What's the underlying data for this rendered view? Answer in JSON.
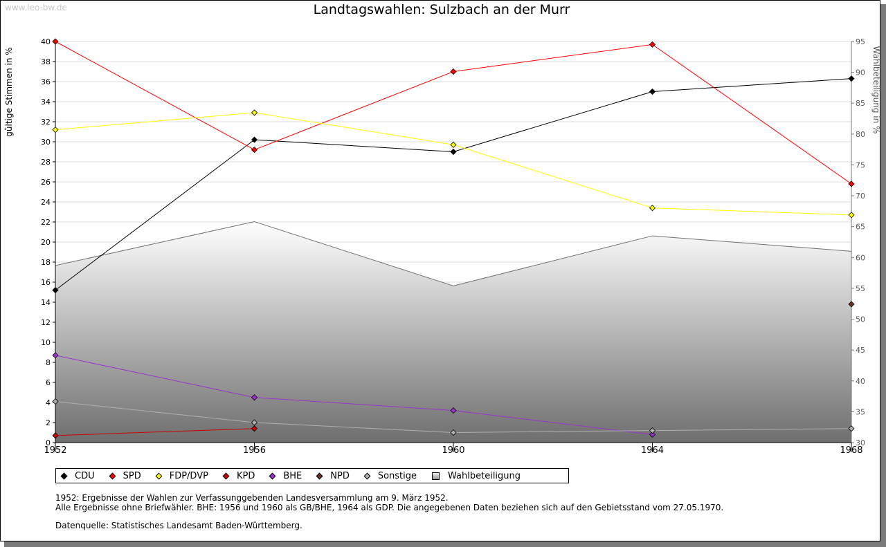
{
  "watermark": "www.leo-bw.de",
  "title": "Landtagswahlen: Sulzbach an der Murr",
  "y_left_label": "gültige Stimmen in %",
  "y_right_label": "Wahlbeteiligung in %",
  "notes": {
    "line1": "1952: Ergebnisse der Wahlen zur Verfassunggebenden Landesversammlung am 9. März 1952.",
    "line2": "Alle Ergebnisse ohne Briefwähler. BHE: 1956 und 1960 als GB/BHE, 1964 als GDP. Die angegebenen Daten beziehen sich auf den Gebietsstand vom 27.05.1970.",
    "source": "Datenquelle: Statistisches Landesamt Baden-Württemberg."
  },
  "chart_data": {
    "type": "line",
    "title": "Landtagswahlen: Sulzbach an der Murr",
    "x": [
      "1952",
      "1956",
      "1960",
      "1964",
      "1968"
    ],
    "ylabel": "gültige Stimmen in %",
    "ylim": [
      0,
      40
    ],
    "yticks": [
      0,
      2,
      4,
      6,
      8,
      10,
      12,
      14,
      16,
      18,
      20,
      22,
      24,
      26,
      28,
      30,
      32,
      34,
      36,
      38,
      40
    ],
    "y2label": "Wahlbeteiligung in %",
    "y2lim": [
      30,
      95
    ],
    "y2ticks": [
      30,
      35,
      40,
      45,
      50,
      55,
      60,
      65,
      70,
      75,
      80,
      85,
      90,
      95
    ],
    "grid": true,
    "series": [
      {
        "name": "CDU",
        "color": "#000000",
        "axis": "left",
        "values": [
          15.2,
          30.2,
          29.0,
          35.0,
          36.3
        ]
      },
      {
        "name": "SPD",
        "color": "#ff0000",
        "axis": "left",
        "values": [
          40.0,
          29.2,
          37.0,
          39.7,
          25.8
        ]
      },
      {
        "name": "FDP/DVP",
        "color": "#ffff00",
        "axis": "left",
        "values": [
          31.2,
          32.9,
          29.7,
          23.4,
          22.7
        ]
      },
      {
        "name": "KPD",
        "color": "#cc0000",
        "axis": "left",
        "values": [
          0.7,
          1.4,
          null,
          null,
          null
        ]
      },
      {
        "name": "BHE",
        "color": "#9933cc",
        "axis": "left",
        "values": [
          8.7,
          4.5,
          3.2,
          0.8,
          null
        ]
      },
      {
        "name": "NPD",
        "color": "#663322",
        "axis": "left",
        "values": [
          null,
          null,
          null,
          null,
          13.8
        ]
      },
      {
        "name": "Sonstige",
        "color": "#b0b0b0",
        "axis": "left",
        "values": [
          4.1,
          2.0,
          1.0,
          1.2,
          1.4
        ]
      },
      {
        "name": "Wahlbeteiligung",
        "color": "#808080",
        "axis": "right",
        "type": "area",
        "values": [
          58.7,
          65.8,
          55.4,
          63.5,
          61.0
        ]
      }
    ]
  }
}
